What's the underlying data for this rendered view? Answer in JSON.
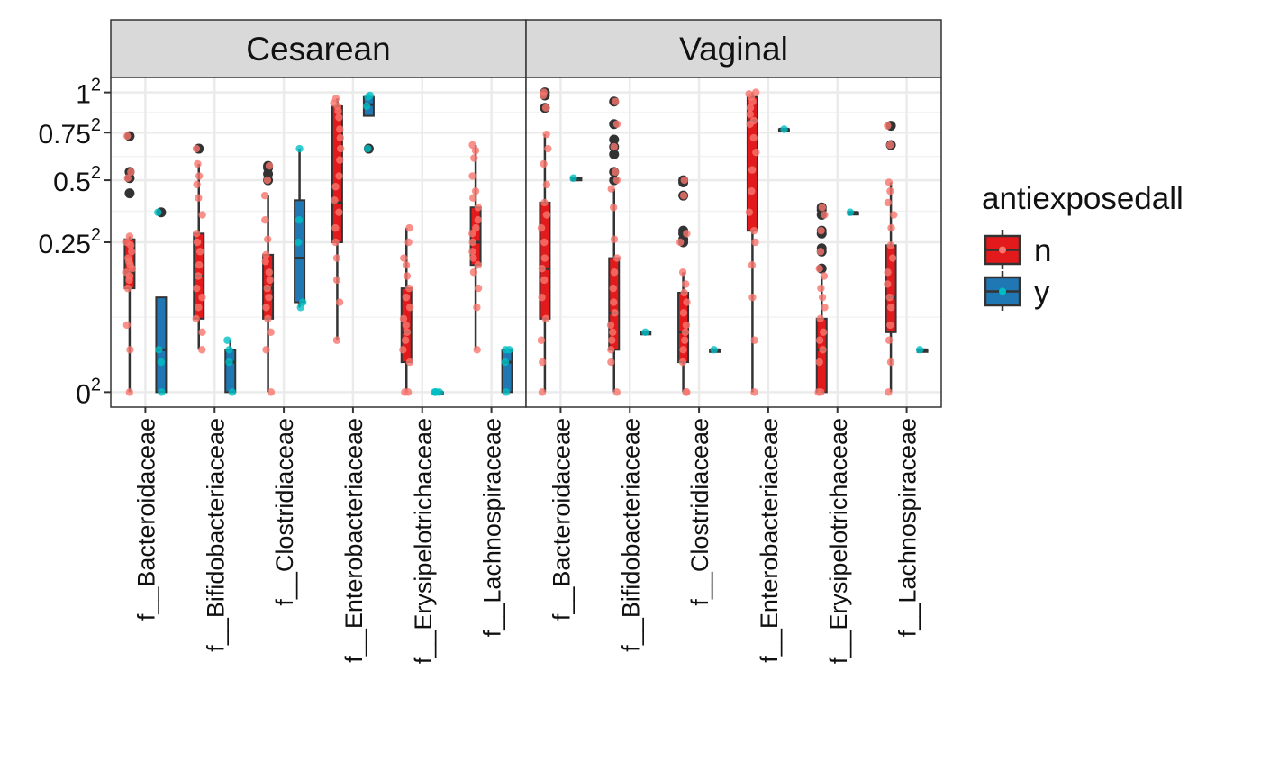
{
  "chart_data": {
    "type": "box",
    "panels": [
      "Cesarean",
      "Vaginal"
    ],
    "categories": [
      "f__Bacteroidaceae",
      "f__Bifidobacteriaceae",
      "f__Clostridiaceae",
      "f__Enterobacteriaceae",
      "f__Erysipelotrichaceae",
      "f__Lachnospiraceae"
    ],
    "y_ticks": [
      "1",
      "0.75",
      "0.5",
      "0.25",
      "0"
    ],
    "y_tick_values": [
      1,
      0.75,
      0.5,
      0.25,
      0
    ],
    "y_tick_superscript": "2",
    "ylim": [
      -0.05,
      1.05
    ],
    "legend": {
      "title": "antiexposedall",
      "placement": "right",
      "entries": [
        {
          "label": "n",
          "fill": "#E31A1C",
          "point": "#F8766D"
        },
        {
          "label": "y",
          "fill": "#1F78B4",
          "point": "#00BFC4"
        }
      ]
    },
    "colors": {
      "strip_bg": "#D9D9D9",
      "grid": "#EBEBEB",
      "border": "#333333",
      "outlier": "#333333"
    },
    "series": [
      {
        "name": "n",
        "boxes": {
          "Cesarean": [
            {
              "q1": 0.12,
              "median": 0.16,
              "q3": 0.26,
              "wlo": 0.0,
              "whi": 0.27,
              "outliers": [
                0.73,
                0.54,
                0.51,
                0.44
              ],
              "points": [
                0.0,
                0.02,
                0.05,
                0.12,
                0.14,
                0.15,
                0.16,
                0.17,
                0.18,
                0.19,
                0.2,
                0.22,
                0.24,
                0.25,
                0.27,
                0.51,
                0.54,
                0.73
              ]
            },
            {
              "q1": 0.06,
              "median": 0.15,
              "q3": 0.28,
              "wlo": 0.02,
              "whi": 0.58,
              "outliers": [
                0.66
              ],
              "points": [
                0.02,
                0.04,
                0.06,
                0.08,
                0.1,
                0.12,
                0.15,
                0.18,
                0.22,
                0.25,
                0.28,
                0.35,
                0.42,
                0.48,
                0.52,
                0.58,
                0.66
              ]
            },
            {
              "q1": 0.06,
              "median": 0.12,
              "q3": 0.21,
              "wlo": 0.0,
              "whi": 0.43,
              "outliers": [
                0.57,
                0.56,
                0.53,
                0.5
              ],
              "points": [
                0.0,
                0.02,
                0.04,
                0.06,
                0.08,
                0.1,
                0.12,
                0.14,
                0.16,
                0.19,
                0.21,
                0.26,
                0.33,
                0.43,
                0.5,
                0.57
              ]
            },
            {
              "q1": 0.25,
              "median": 0.4,
              "q3": 0.91,
              "wlo": 0.03,
              "whi": 0.96,
              "outliers": [],
              "points": [
                0.03,
                0.09,
                0.14,
                0.2,
                0.25,
                0.3,
                0.36,
                0.41,
                0.47,
                0.52,
                0.6,
                0.66,
                0.72,
                0.77,
                0.84,
                0.88,
                0.91,
                0.93,
                0.96
              ]
            },
            {
              "q1": 0.01,
              "median": 0.04,
              "q3": 0.12,
              "wlo": 0.0,
              "whi": 0.3,
              "outliers": [],
              "points": [
                0.0,
                0.0,
                0.01,
                0.02,
                0.03,
                0.04,
                0.05,
                0.06,
                0.08,
                0.1,
                0.12,
                0.15,
                0.18,
                0.2,
                0.25,
                0.3
              ]
            },
            {
              "q1": 0.18,
              "median": 0.25,
              "q3": 0.38,
              "wlo": 0.02,
              "whi": 0.68,
              "outliers": [],
              "points": [
                0.02,
                0.08,
                0.12,
                0.16,
                0.18,
                0.2,
                0.22,
                0.25,
                0.28,
                0.3,
                0.33,
                0.38,
                0.42,
                0.45,
                0.52,
                0.61,
                0.65,
                0.68
              ]
            }
          ],
          "Vaginal": [
            {
              "q1": 0.06,
              "median": 0.17,
              "q3": 0.4,
              "wlo": 0.0,
              "whi": 0.74,
              "outliers": [
                1.0,
                0.98,
                0.9
              ],
              "points": [
                0.0,
                0.01,
                0.03,
                0.06,
                0.1,
                0.14,
                0.17,
                0.2,
                0.25,
                0.3,
                0.35,
                0.4,
                0.48,
                0.58,
                0.66,
                0.74,
                0.9,
                0.98,
                1.0
              ]
            },
            {
              "q1": 0.02,
              "median": 0.07,
              "q3": 0.2,
              "wlo": 0.0,
              "whi": 0.46,
              "outliers": [
                0.94,
                0.8,
                0.71,
                0.67,
                0.63,
                0.54,
                0.5
              ],
              "points": [
                0.0,
                0.01,
                0.02,
                0.03,
                0.04,
                0.05,
                0.07,
                0.09,
                0.12,
                0.16,
                0.2,
                0.26,
                0.38,
                0.46,
                0.5,
                0.54,
                0.67,
                0.8,
                0.94
              ]
            },
            {
              "q1": 0.01,
              "median": 0.04,
              "q3": 0.11,
              "wlo": 0.0,
              "whi": 0.16,
              "outliers": [
                0.5,
                0.49,
                0.43,
                0.29,
                0.28,
                0.26,
                0.25
              ],
              "points": [
                0.0,
                0.0,
                0.01,
                0.02,
                0.03,
                0.04,
                0.05,
                0.07,
                0.09,
                0.11,
                0.13,
                0.16,
                0.25,
                0.28,
                0.43,
                0.5
              ]
            },
            {
              "q1": 0.29,
              "median": 0.82,
              "q3": 0.97,
              "wlo": 0.0,
              "whi": 1.0,
              "outliers": [],
              "points": [
                0.0,
                0.03,
                0.1,
                0.18,
                0.25,
                0.29,
                0.36,
                0.45,
                0.55,
                0.64,
                0.72,
                0.8,
                0.82,
                0.86,
                0.9,
                0.94,
                0.97,
                0.99,
                1.0
              ]
            },
            {
              "q1": 0.0,
              "median": 0.02,
              "q3": 0.06,
              "wlo": 0.0,
              "whi": 0.15,
              "outliers": [
                0.38,
                0.37,
                0.35,
                0.29,
                0.28,
                0.23,
                0.22,
                0.17
              ],
              "points": [
                0.0,
                0.0,
                0.01,
                0.02,
                0.03,
                0.04,
                0.06,
                0.08,
                0.1,
                0.12,
                0.15,
                0.17,
                0.22,
                0.29,
                0.35,
                0.38
              ]
            },
            {
              "q1": 0.04,
              "median": 0.1,
              "q3": 0.24,
              "wlo": 0.0,
              "whi": 0.49,
              "outliers": [
                0.79,
                0.68
              ],
              "points": [
                0.0,
                0.01,
                0.03,
                0.05,
                0.08,
                0.1,
                0.13,
                0.16,
                0.2,
                0.24,
                0.3,
                0.35,
                0.4,
                0.45,
                0.49,
                0.68,
                0.79
              ]
            }
          ]
        }
      },
      {
        "name": "y",
        "boxes": {
          "Cesarean": [
            {
              "q1": 0.0,
              "median": 0.02,
              "q3": 0.1,
              "wlo": 0.0,
              "whi": 0.1,
              "outliers": [
                0.36
              ],
              "points": [
                0.0,
                0.01,
                0.02,
                0.36
              ]
            },
            {
              "q1": 0.0,
              "median": 0.01,
              "q3": 0.02,
              "wlo": 0.0,
              "whi": 0.03,
              "outliers": [],
              "points": [
                0.0,
                0.01,
                0.02,
                0.03
              ]
            },
            {
              "q1": 0.09,
              "median": 0.2,
              "q3": 0.41,
              "wlo": 0.08,
              "whi": 0.66,
              "outliers": [],
              "points": [
                0.08,
                0.09,
                0.25,
                0.33,
                0.66
              ]
            },
            {
              "q1": 0.85,
              "median": 0.92,
              "q3": 0.97,
              "wlo": 0.85,
              "whi": 0.97,
              "outliers": [
                0.66
              ],
              "points": [
                0.66,
                0.91,
                0.97,
                0.98
              ]
            },
            {
              "q1": 0.0,
              "median": 0.0,
              "q3": 0.0,
              "wlo": 0.0,
              "whi": 0.0,
              "outliers": [],
              "points": [
                0.0,
                0.0,
                0.0,
                0.0
              ]
            },
            {
              "q1": 0.0,
              "median": 0.01,
              "q3": 0.02,
              "wlo": 0.0,
              "whi": 0.02,
              "outliers": [],
              "points": [
                0.0,
                0.01,
                0.02,
                0.02
              ]
            }
          ],
          "Vaginal": [
            {
              "q1": 0.51,
              "median": 0.51,
              "q3": 0.51,
              "wlo": 0.51,
              "whi": 0.51,
              "outliers": [],
              "points": [
                0.51
              ]
            },
            {
              "q1": 0.04,
              "median": 0.04,
              "q3": 0.04,
              "wlo": 0.04,
              "whi": 0.04,
              "outliers": [],
              "points": [
                0.04
              ]
            },
            {
              "q1": 0.02,
              "median": 0.02,
              "q3": 0.02,
              "wlo": 0.02,
              "whi": 0.02,
              "outliers": [],
              "points": [
                0.02
              ]
            },
            {
              "q1": 0.77,
              "median": 0.77,
              "q3": 0.77,
              "wlo": 0.77,
              "whi": 0.77,
              "outliers": [],
              "points": [
                0.77
              ]
            },
            {
              "q1": 0.36,
              "median": 0.36,
              "q3": 0.36,
              "wlo": 0.36,
              "whi": 0.36,
              "outliers": [],
              "points": [
                0.36
              ]
            },
            {
              "q1": 0.02,
              "median": 0.02,
              "q3": 0.02,
              "wlo": 0.02,
              "whi": 0.02,
              "outliers": [],
              "points": [
                0.02
              ]
            }
          ]
        }
      }
    ]
  }
}
